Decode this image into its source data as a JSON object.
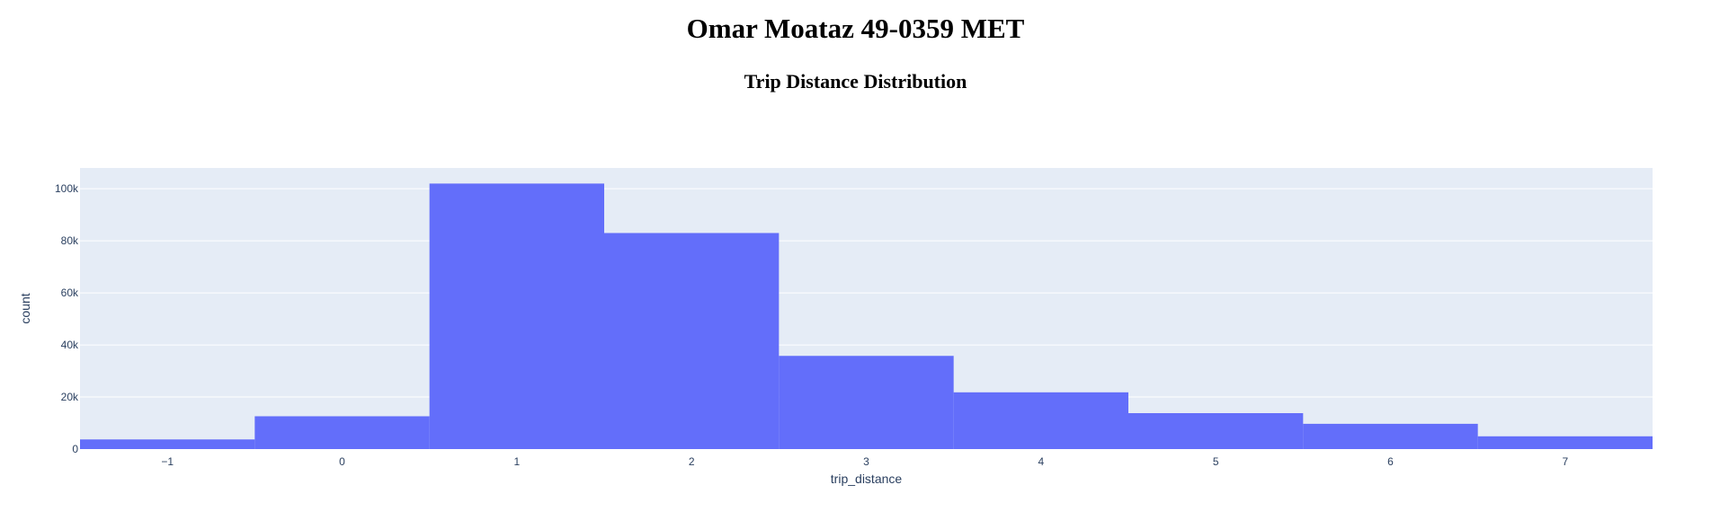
{
  "page": {
    "title": "Omar Moataz 49-0359 MET"
  },
  "chart_data": {
    "type": "bar",
    "title": "Trip Distance Distribution",
    "xlabel": "trip_distance",
    "ylabel": "count",
    "bin_width": 1,
    "x": [
      -1,
      0,
      1,
      2,
      3,
      4,
      5,
      6,
      7
    ],
    "values": [
      3700,
      12600,
      102000,
      83000,
      35800,
      21800,
      13800,
      9700,
      4900
    ],
    "xlim": [
      -1.5,
      7.5
    ],
    "ylim": [
      0,
      108000
    ],
    "x_ticks": [
      -1,
      0,
      1,
      2,
      3,
      4,
      5,
      6,
      7
    ],
    "x_tick_labels": [
      "−1",
      "0",
      "1",
      "2",
      "3",
      "4",
      "5",
      "6",
      "7"
    ],
    "y_ticks": [
      0,
      20000,
      40000,
      60000,
      80000,
      100000
    ],
    "y_tick_labels": [
      "0",
      "20k",
      "40k",
      "60k",
      "80k",
      "100k"
    ],
    "grid": true,
    "colors": {
      "bar": "#636efa",
      "plot_bg": "#e5ecf6",
      "grid": "#ffffff",
      "text": "#2a3f5f"
    }
  }
}
